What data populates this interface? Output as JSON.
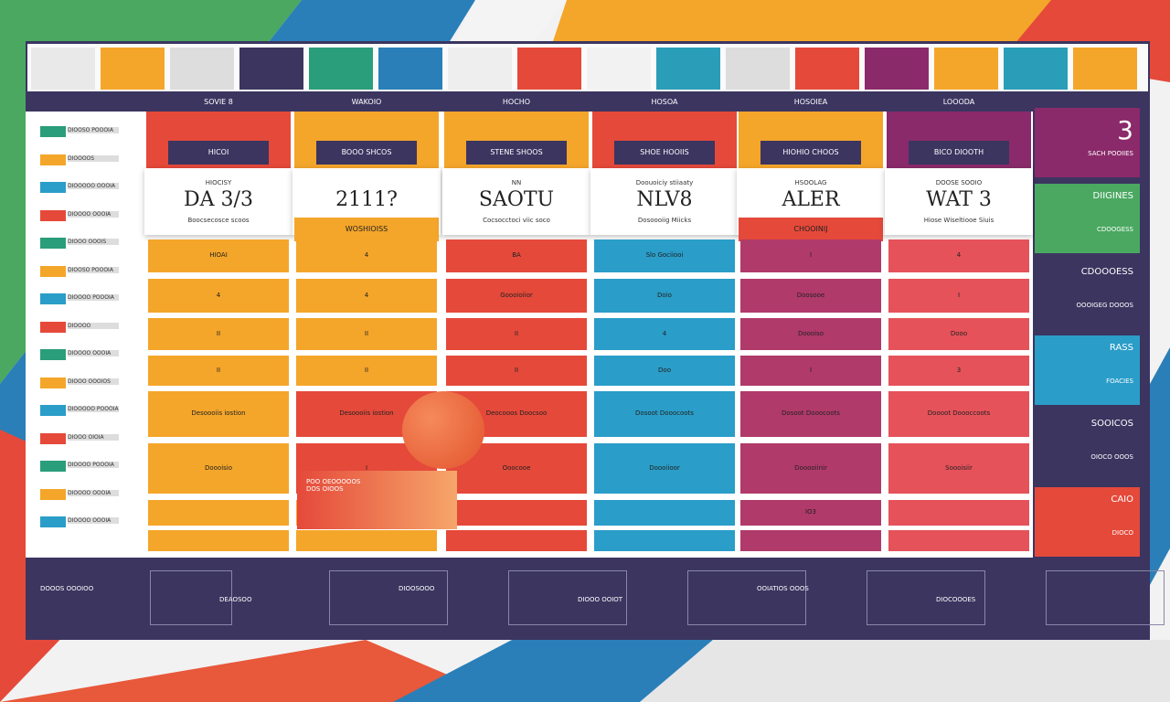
{
  "header": {
    "tabs": [
      "SOVIE 8",
      "WAKOIO",
      "HOCHO",
      "HOSOA",
      "HOSOIEA",
      "LOOODA"
    ]
  },
  "columns": [
    {
      "tag": "HICOI",
      "label": "HIOCISY",
      "title": "DA 3/3",
      "subtitle": "Boocsecosce scoos",
      "cells": [
        "HIOAI",
        "4",
        "II",
        "II",
        "Desoooiis iostion",
        "Doooisio"
      ]
    },
    {
      "tag": "BOOO SHCOS",
      "title": "2111?",
      "band": "WOSHIOISS",
      "cells": [
        "4",
        "4",
        "II",
        "II",
        "Desoooiis iostion",
        "I"
      ]
    },
    {
      "tag": "STENE SHOOS",
      "label": "NN",
      "title": "SAOTU",
      "subtitle": "Cocsocctoci viic soco",
      "cells": [
        "BA",
        "Goooioiior",
        "II",
        "II",
        "Deocooos Doocsoo",
        "Ooocooe"
      ]
    },
    {
      "tag": "SHOE HOOIIS",
      "label": "Doouoiciy stiiaaty",
      "title": "NLV8",
      "subtitle": "Dosoooiig Miicks",
      "cells": [
        "Slo Gociiooi",
        "Doio",
        "4",
        "Doo",
        "Dosoot Dooocoots",
        "Doooiioor"
      ]
    },
    {
      "tag": "HIOHIO CHOOS",
      "label": "HSOOLAG",
      "title": "ALER",
      "band": "CHOOINIJ",
      "cells": [
        "I",
        "Doosooe",
        "Doooiso",
        "I",
        "Dosoot Dooocoots",
        "Dooooiinir",
        "IO3"
      ]
    },
    {
      "tag": "BICO DIOOTH",
      "label": "DOOSE SOOIO",
      "title": "WAT 3",
      "subtitle": "Hiose Wiseltiooe Siuis",
      "cells": [
        "4",
        "I",
        "Dooo",
        "3",
        "Doooot Doooccoots",
        "Soooisiir"
      ]
    }
  ],
  "sidebar": [
    "DIOOSO POOOIA",
    "DIOOOOS",
    "DIOOOOO OOOIA",
    "DIOOOO OOOIA",
    "DIOOO OOOIS",
    "DIOOSO POOOIA",
    "DIOOOO POOOIA",
    "DIOOOO",
    "DIOOOO OOOIA",
    "DIOOO OOOIOS",
    "DIOOOOO POOOIA",
    "DIOOO OIOIA",
    "DIOOOO POOOIA",
    "DIOOOO OOOIA",
    "DIOOOO OOOIA"
  ],
  "right_panels": [
    {
      "title": "3",
      "text": "SACH POOIIES"
    },
    {
      "title": "DIIGINES",
      "text": "CDOOGESS"
    },
    {
      "title": "CDOOOESS",
      "text": "OOOIGEG DOOOS"
    },
    {
      "title": "RASS",
      "text": "FOACIES"
    },
    {
      "title": "SOOICOS",
      "text": "OIOCO OOOS"
    },
    {
      "title": "CAIO",
      "text": "DIOCO"
    }
  ],
  "overlay_card": {
    "text": "POO OEOOOOOS DOS OIOOS"
  },
  "footer": {
    "items": [
      "DOOOS OOOIOO",
      "DEAOSOO",
      "DIOOSOOO",
      "DIOOO OOIOT",
      "OOIATIOS OOOS",
      "DIOCOOOES"
    ]
  }
}
